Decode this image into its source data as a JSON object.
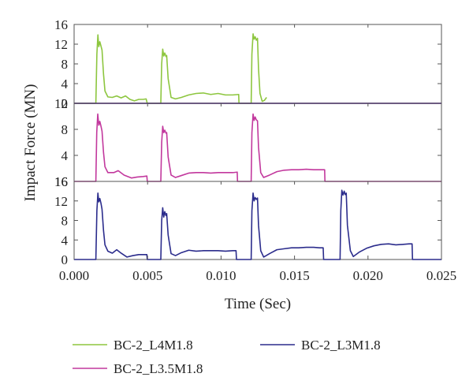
{
  "chart_data": {
    "type": "line",
    "title": "",
    "xlabel": "Time (Sec)",
    "ylabel": "Impact Force (MN)",
    "xlim": [
      0,
      0.025
    ],
    "x_ticks": [
      "0.000",
      "0.005",
      "0.010",
      "0.015",
      "0.020",
      "0.025"
    ],
    "legend_position": "bottom",
    "panels": [
      {
        "ylim": [
          0,
          16
        ],
        "y_ticks": [
          "0",
          "4",
          "8",
          "12",
          "16"
        ],
        "series": [
          {
            "name": "BC-2_L4M1.8",
            "color": "#8dc63f",
            "points": [
              [
                0.0,
                0
              ],
              [
                0.00148,
                0
              ],
              [
                0.00155,
                10
              ],
              [
                0.00162,
                13.9
              ],
              [
                0.00168,
                11.5
              ],
              [
                0.00175,
                12.5
              ],
              [
                0.00183,
                11.6
              ],
              [
                0.0019,
                10.8
              ],
              [
                0.002,
                6
              ],
              [
                0.0021,
                2.5
              ],
              [
                0.0023,
                1.3
              ],
              [
                0.0026,
                1.2
              ],
              [
                0.0029,
                1.5
              ],
              [
                0.0032,
                1.1
              ],
              [
                0.0035,
                1.5
              ],
              [
                0.0038,
                0.8
              ],
              [
                0.0041,
                0.5
              ],
              [
                0.0044,
                0.8
              ],
              [
                0.0047,
                0.8
              ],
              [
                0.0049,
                0.9
              ],
              [
                0.00498,
                0
              ],
              [
                0.00498,
                0
              ],
              [
                0.0059,
                0
              ],
              [
                0.00596,
                8
              ],
              [
                0.00603,
                11
              ],
              [
                0.0061,
                9.6
              ],
              [
                0.00617,
                10.2
              ],
              [
                0.00625,
                9.5
              ],
              [
                0.0063,
                9.7
              ],
              [
                0.0064,
                5
              ],
              [
                0.0066,
                1.2
              ],
              [
                0.0069,
                0.9
              ],
              [
                0.0073,
                1.2
              ],
              [
                0.0078,
                1.7
              ],
              [
                0.0083,
                2
              ],
              [
                0.0088,
                2.1
              ],
              [
                0.0093,
                1.8
              ],
              [
                0.0098,
                2
              ],
              [
                0.0103,
                1.7
              ],
              [
                0.0108,
                1.7
              ],
              [
                0.0112,
                1.8
              ],
              [
                0.01122,
                0
              ],
              [
                0.01122,
                0
              ],
              [
                0.01205,
                0
              ],
              [
                0.0121,
                10
              ],
              [
                0.01218,
                14.1
              ],
              [
                0.01225,
                13
              ],
              [
                0.01232,
                13.5
              ],
              [
                0.0124,
                12.8
              ],
              [
                0.01248,
                13.2
              ],
              [
                0.01255,
                7
              ],
              [
                0.01265,
                2
              ],
              [
                0.0128,
                0.4
              ],
              [
                0.01295,
                0.6
              ],
              [
                0.0131,
                1.2
              ]
            ]
          },
          {
            "name": "BC-2_L3.5M1.8",
            "color": "#c2389d",
            "points": [
              [
                0.0,
                0
              ],
              [
                0.01305,
                0
              ],
              [
                0.025,
                0
              ]
            ]
          },
          {
            "name": "BC-2_L3M1.8",
            "color": "#2b2c8c",
            "points": [
              [
                0.0,
                0
              ],
              [
                0.025,
                0
              ]
            ]
          }
        ]
      },
      {
        "ylim": [
          0,
          16
        ],
        "y_ticks": [
          "16",
          "4",
          "8",
          "12"
        ],
        "series": [
          {
            "name": "BC-2_L3.5M1.8",
            "color": "#c2389d",
            "points": [
              [
                0.0,
                0
              ],
              [
                0.00148,
                0
              ],
              [
                0.00154,
                10
              ],
              [
                0.00161,
                13.8
              ],
              [
                0.00168,
                11.5
              ],
              [
                0.00175,
                12.3
              ],
              [
                0.00183,
                11.3
              ],
              [
                0.0019,
                10.3
              ],
              [
                0.002,
                6
              ],
              [
                0.0021,
                3
              ],
              [
                0.0023,
                1.8
              ],
              [
                0.0027,
                1.8
              ],
              [
                0.003,
                2.2
              ],
              [
                0.0034,
                1.3
              ],
              [
                0.0039,
                0.7
              ],
              [
                0.0043,
                0.9
              ],
              [
                0.0047,
                1
              ],
              [
                0.00495,
                1.1
              ],
              [
                0.00498,
                0
              ],
              [
                0.00498,
                0
              ],
              [
                0.0059,
                0
              ],
              [
                0.00596,
                8
              ],
              [
                0.00603,
                11.3
              ],
              [
                0.0061,
                10
              ],
              [
                0.00617,
                10.5
              ],
              [
                0.00625,
                9.9
              ],
              [
                0.0063,
                10
              ],
              [
                0.0064,
                5
              ],
              [
                0.0066,
                1.3
              ],
              [
                0.0069,
                0.8
              ],
              [
                0.0073,
                1.2
              ],
              [
                0.0078,
                1.7
              ],
              [
                0.0083,
                1.8
              ],
              [
                0.0088,
                1.8
              ],
              [
                0.0093,
                1.7
              ],
              [
                0.0098,
                1.8
              ],
              [
                0.0103,
                1.8
              ],
              [
                0.0108,
                1.8
              ],
              [
                0.0111,
                1.9
              ],
              [
                0.01112,
                0
              ],
              [
                0.01112,
                0
              ],
              [
                0.01205,
                0
              ],
              [
                0.0121,
                10
              ],
              [
                0.01218,
                13.8
              ],
              [
                0.01225,
                12.5
              ],
              [
                0.01232,
                13.2
              ],
              [
                0.0124,
                12.6
              ],
              [
                0.01248,
                12.4
              ],
              [
                0.01255,
                7
              ],
              [
                0.0127,
                1.8
              ],
              [
                0.0129,
                0.8
              ],
              [
                0.0133,
                1.3
              ],
              [
                0.0138,
                2
              ],
              [
                0.0143,
                2.3
              ],
              [
                0.0148,
                2.4
              ],
              [
                0.0153,
                2.4
              ],
              [
                0.0158,
                2.5
              ],
              [
                0.0163,
                2.4
              ],
              [
                0.0167,
                2.4
              ],
              [
                0.01705,
                2.4
              ],
              [
                0.01707,
                0
              ],
              [
                0.01707,
                0
              ],
              [
                0.025,
                0
              ]
            ]
          }
        ]
      },
      {
        "ylim": [
          0,
          16
        ],
        "y_ticks": [
          "0",
          "4",
          "8",
          "12",
          "16"
        ],
        "series": [
          {
            "name": "BC-2_L3M1.8",
            "color": "#2b2c8c",
            "points": [
              [
                0.0,
                0
              ],
              [
                0.00148,
                0
              ],
              [
                0.00155,
                10
              ],
              [
                0.00162,
                13.6
              ],
              [
                0.00168,
                11.8
              ],
              [
                0.00175,
                12.5
              ],
              [
                0.00183,
                11.5
              ],
              [
                0.0019,
                10.3
              ],
              [
                0.002,
                6
              ],
              [
                0.0021,
                3
              ],
              [
                0.0023,
                1.7
              ],
              [
                0.0026,
                1.3
              ],
              [
                0.0029,
                2
              ],
              [
                0.0032,
                1.3
              ],
              [
                0.0036,
                0.5
              ],
              [
                0.004,
                0.8
              ],
              [
                0.0044,
                1
              ],
              [
                0.0047,
                1
              ],
              [
                0.00495,
                1
              ],
              [
                0.00498,
                0
              ],
              [
                0.00498,
                0
              ],
              [
                0.0059,
                0
              ],
              [
                0.00596,
                8
              ],
              [
                0.00603,
                10.6
              ],
              [
                0.0061,
                8.7
              ],
              [
                0.00617,
                9.8
              ],
              [
                0.00625,
                9
              ],
              [
                0.0063,
                9.4
              ],
              [
                0.0064,
                5
              ],
              [
                0.0066,
                1.2
              ],
              [
                0.0069,
                0.8
              ],
              [
                0.0073,
                1.4
              ],
              [
                0.0078,
                1.9
              ],
              [
                0.0083,
                1.7
              ],
              [
                0.0088,
                1.8
              ],
              [
                0.0093,
                1.8
              ],
              [
                0.0098,
                1.8
              ],
              [
                0.0103,
                1.7
              ],
              [
                0.0108,
                1.8
              ],
              [
                0.01102,
                1.8
              ],
              [
                0.01105,
                0
              ],
              [
                0.01105,
                0
              ],
              [
                0.01205,
                0
              ],
              [
                0.0121,
                10
              ],
              [
                0.01218,
                13.6
              ],
              [
                0.01225,
                12
              ],
              [
                0.01232,
                12.7
              ],
              [
                0.0124,
                12.3
              ],
              [
                0.01248,
                12.6
              ],
              [
                0.01255,
                7
              ],
              [
                0.0127,
                1.8
              ],
              [
                0.0129,
                0.5
              ],
              [
                0.0133,
                1.2
              ],
              [
                0.0138,
                2
              ],
              [
                0.0143,
                2.2
              ],
              [
                0.0148,
                2.4
              ],
              [
                0.0153,
                2.4
              ],
              [
                0.0158,
                2.5
              ],
              [
                0.0163,
                2.5
              ],
              [
                0.0167,
                2.4
              ],
              [
                0.01695,
                2.4
              ],
              [
                0.01698,
                0
              ],
              [
                0.01698,
                0
              ],
              [
                0.0181,
                0
              ],
              [
                0.01815,
                10
              ],
              [
                0.01822,
                14.2
              ],
              [
                0.0183,
                13.2
              ],
              [
                0.01838,
                14
              ],
              [
                0.01845,
                13.3
              ],
              [
                0.01852,
                13.6
              ],
              [
                0.0186,
                7
              ],
              [
                0.0188,
                1.8
              ],
              [
                0.019,
                0.6
              ],
              [
                0.0194,
                1.5
              ],
              [
                0.0199,
                2.3
              ],
              [
                0.0204,
                2.8
              ],
              [
                0.0209,
                3.1
              ],
              [
                0.0214,
                3.2
              ],
              [
                0.0219,
                3
              ],
              [
                0.0224,
                3.1
              ],
              [
                0.0228,
                3.2
              ],
              [
                0.023,
                3.2
              ],
              [
                0.02303,
                0
              ],
              [
                0.02303,
                0
              ],
              [
                0.025,
                0
              ]
            ]
          }
        ]
      }
    ],
    "legend": [
      {
        "name": "BC-2_L4M1.8",
        "color": "#8dc63f"
      },
      {
        "name": "BC-2_L3M1.8",
        "color": "#2b2c8c"
      },
      {
        "name": "BC-2_L3.5M1.8",
        "color": "#c2389d"
      }
    ]
  }
}
